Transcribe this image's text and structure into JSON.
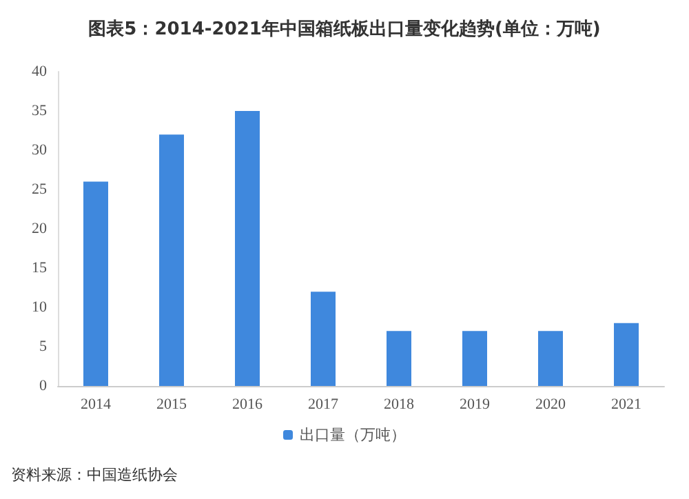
{
  "chart_data": {
    "type": "bar",
    "title": "图表5：2014-2021年中国箱纸板出口量变化趋势(单位：万吨)",
    "categories": [
      "2014",
      "2015",
      "2016",
      "2017",
      "2018",
      "2019",
      "2020",
      "2021"
    ],
    "series": [
      {
        "name": "出口量（万吨）",
        "color": "#3f88dd",
        "values": [
          26,
          32,
          35,
          12,
          7,
          7,
          7,
          8
        ]
      }
    ],
    "ylim": [
      0,
      40
    ],
    "yticks": [
      0,
      5,
      10,
      15,
      20,
      25,
      30,
      35,
      40
    ],
    "grid": false,
    "legend": "bottom",
    "annotations": [
      "资料来源：中国造纸协会"
    ]
  }
}
